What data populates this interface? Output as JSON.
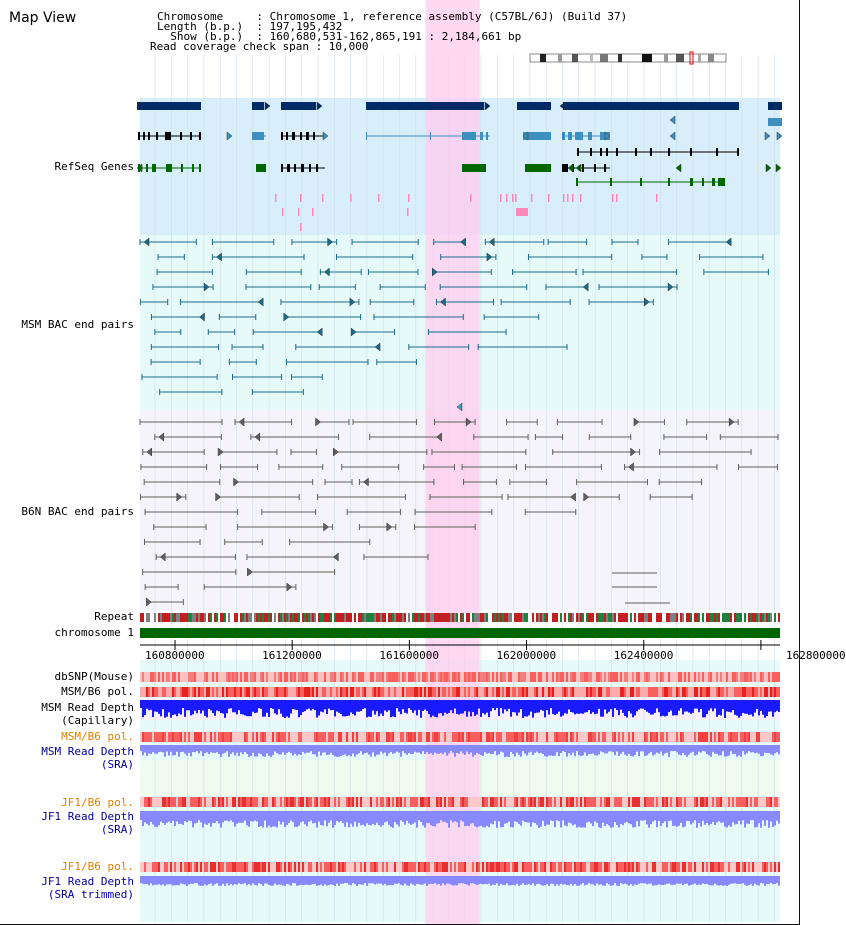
{
  "view": {
    "title": "Map View",
    "info_lines": [
      "Chromosome     : Chromosome 1, reference assembly (C57BL/6J) (Build 37)",
      "Length (b.p.)  : 197,195,432",
      "  Show (b.p.)  : 160,680,531-162,865,191 : 2,184,661 bp",
      "Read coverage check span : 10,000"
    ]
  },
  "tracks": {
    "refseq": {
      "label": "RefSeq Genes",
      "color": "#000099"
    },
    "msm_bac": {
      "label": "MSM BAC end pairs",
      "color": "#006080"
    },
    "b6n_bac": {
      "label": "B6N BAC end pairs",
      "color": "#505050"
    },
    "repeat": {
      "label": "Repeat"
    },
    "chromosome": {
      "label": "chromosome 1"
    },
    "dbsnp": {
      "label": "dbSNP(Mouse)"
    },
    "msm_b6_pol_1": {
      "label": "MSM/B6 pol."
    },
    "msm_depth_cap": {
      "label_1": "MSM Read Depth",
      "label_2": "(Capillary)"
    },
    "msm_b6_pol_2": {
      "label": "MSM/B6 pol.",
      "color": "#e08000"
    },
    "msm_depth_sra": {
      "label_1": "MSM Read Depth",
      "label_2": "(SRA)",
      "color": "#000099"
    },
    "jf1_b6_pol_1": {
      "label": "JF1/B6 pol.",
      "color": "#e08000"
    },
    "jf1_depth_sra": {
      "label_1": "JF1 Read Depth",
      "label_2": "(SRA)",
      "color": "#000099"
    },
    "jf1_b6_pol_2": {
      "label": "JF1/B6 pol.",
      "color": "#e08000"
    },
    "jf1_depth_trim": {
      "label_1": "JF1 Read Depth",
      "label_2": "(SRA trimmed)",
      "color": "#000099"
    }
  },
  "axis": {
    "range": [
      160680531,
      162865191
    ],
    "ticks": [
      160800000,
      161200000,
      161600000,
      162000000,
      162400000,
      162800000
    ],
    "tick_labels": [
      "160800000",
      "161200000",
      "161600000",
      "162000000",
      "162400000",
      "162800000"
    ]
  },
  "highlight": {
    "start": 161655000,
    "end": 161840000
  },
  "colors": {
    "refseq_dark": "#002b66",
    "refseq_light": "#3d8fbf",
    "refseq_green": "#006600",
    "refseq_bg": "#d8eefa",
    "msm_bg": "#e6fafa",
    "b6n_bg": "#f4f4fa",
    "depth_blue": "#1a1aff",
    "depth_lilac": "#8888ff",
    "pol_red": "#f03030",
    "pol_pink": "#ffb0b0",
    "chromosome_green": "#006600",
    "highlight": "#ffccee"
  }
}
